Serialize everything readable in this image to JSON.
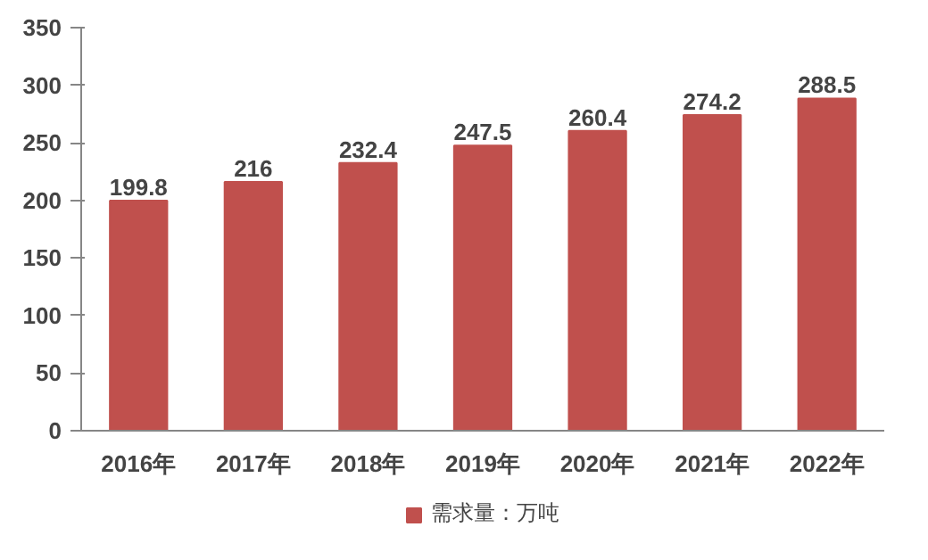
{
  "chart_data": {
    "type": "bar",
    "categories": [
      "2016年",
      "2017年",
      "2018年",
      "2019年",
      "2020年",
      "2021年",
      "2022年"
    ],
    "series": [
      {
        "name": "需求量：万吨",
        "color": "#c0504d",
        "values": [
          199.8,
          216,
          232.4,
          247.5,
          260.4,
          274.2,
          288.5
        ]
      }
    ],
    "ylim": [
      0,
      350
    ],
    "yticks": [
      0,
      50,
      100,
      150,
      200,
      250,
      300,
      350
    ],
    "grid": false,
    "legend": "bottom",
    "data_labels": true
  }
}
